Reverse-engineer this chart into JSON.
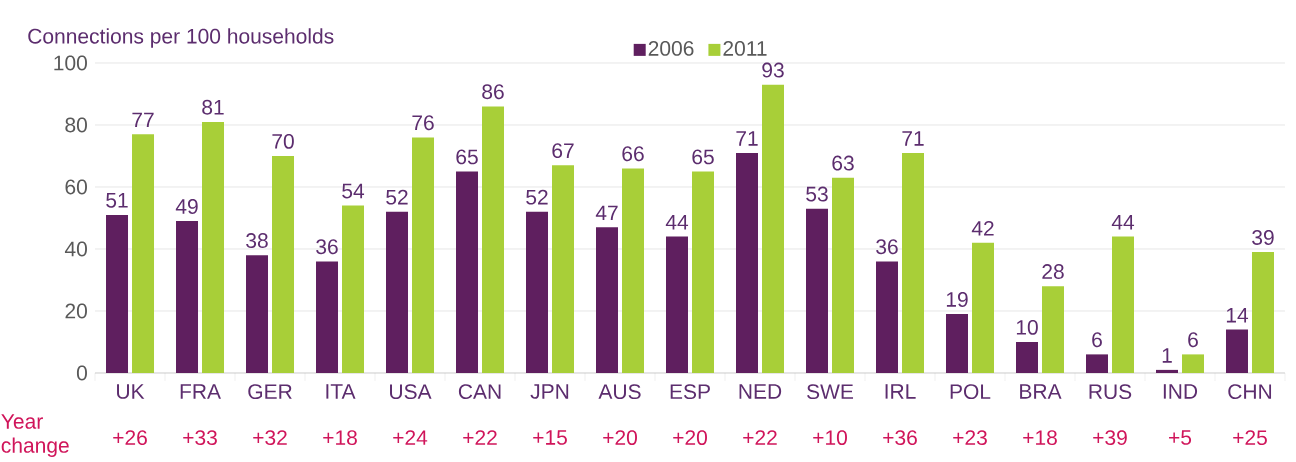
{
  "chart_data": {
    "type": "bar",
    "ylabel": "Connections per 100 households",
    "categories": [
      "UK",
      "FRA",
      "GER",
      "ITA",
      "USA",
      "CAN",
      "JPN",
      "AUS",
      "ESP",
      "NED",
      "SWE",
      "IRL",
      "POL",
      "BRA",
      "RUS",
      "IND",
      "CHN"
    ],
    "series": [
      {
        "name": "2006",
        "color": "#5f1f5f",
        "values": [
          51,
          49,
          38,
          36,
          52,
          65,
          52,
          47,
          44,
          71,
          53,
          36,
          19,
          10,
          6,
          1,
          14
        ]
      },
      {
        "name": "2011",
        "color": "#a8cf38",
        "values": [
          77,
          81,
          70,
          54,
          76,
          86,
          67,
          66,
          65,
          93,
          63,
          71,
          42,
          28,
          44,
          6,
          39
        ]
      }
    ],
    "ylim": [
      0,
      100
    ],
    "yticks": [
      0,
      20,
      40,
      60,
      80,
      100
    ],
    "grid": "y",
    "legend": "top",
    "data_labels": true,
    "annotations": [
      "Year change",
      "+26",
      "+33",
      "+32",
      "+18",
      "+24",
      "+22",
      "+15",
      "+20",
      "+20",
      "+22",
      "+10",
      "+36",
      "+23",
      "+18",
      "+39",
      "+5",
      "+25"
    ]
  }
}
